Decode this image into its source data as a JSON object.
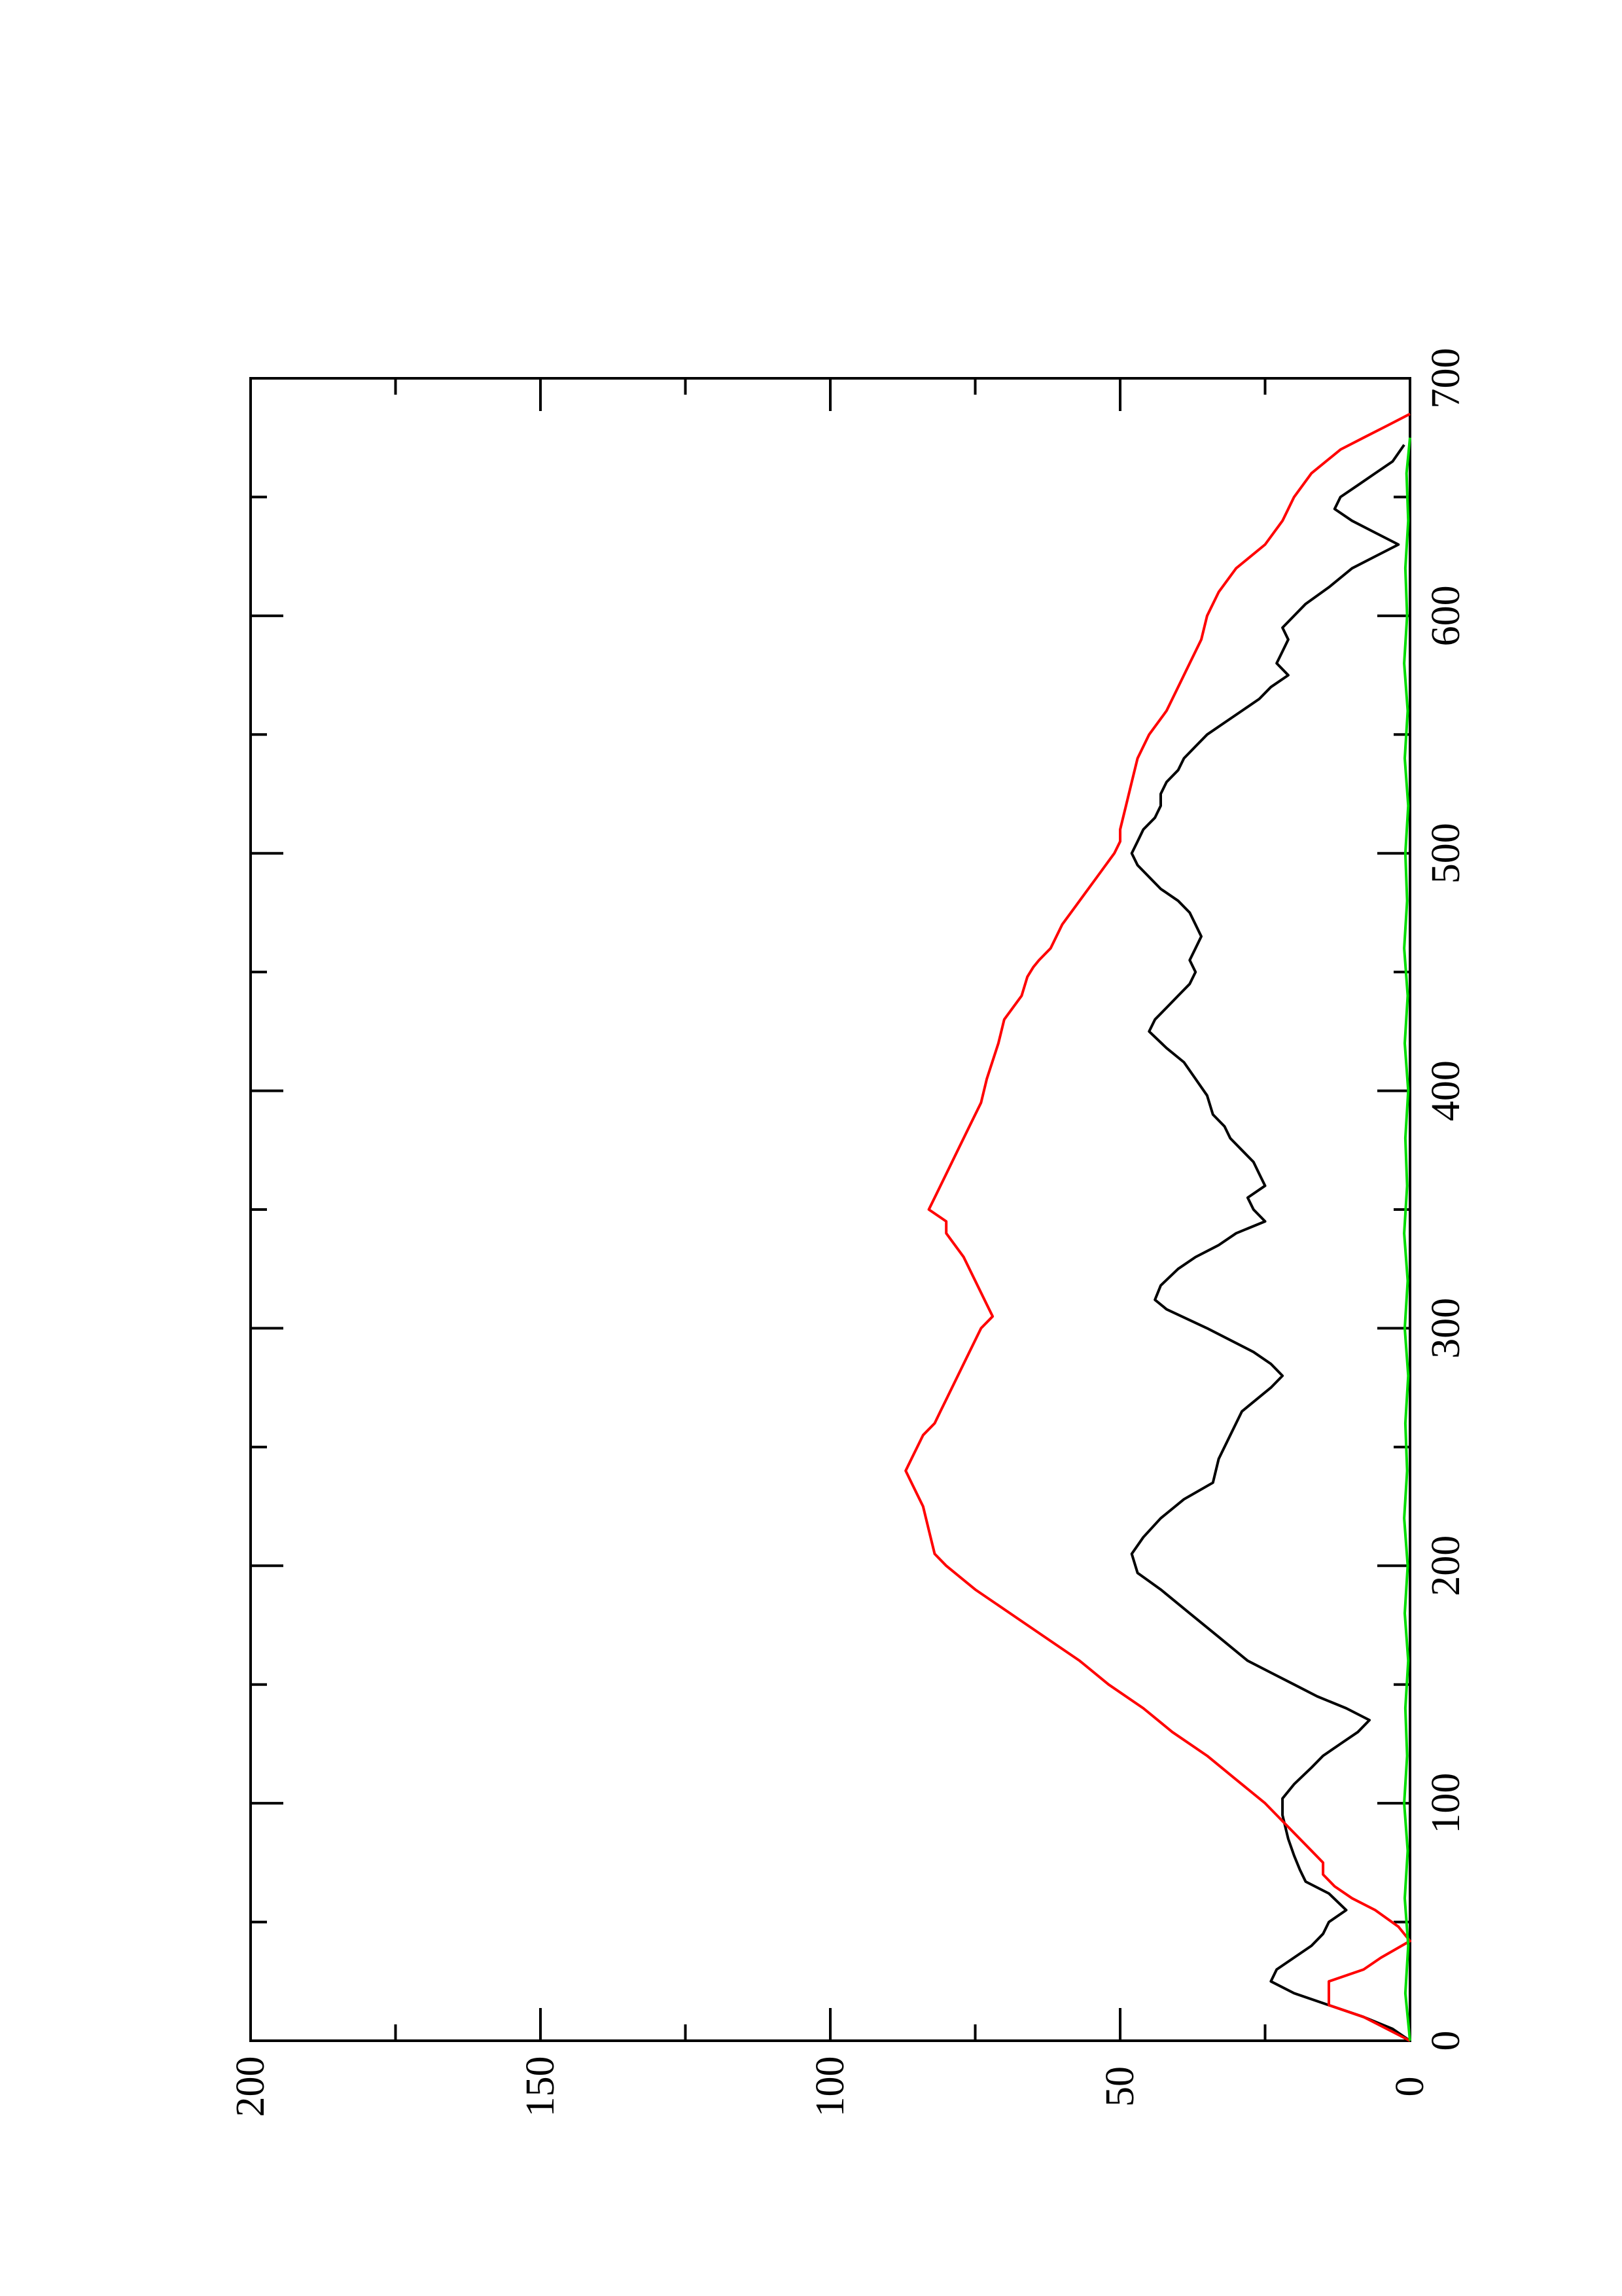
{
  "chart_data": {
    "type": "line",
    "orientation": "rotated-90-ccw",
    "title": "",
    "xlabel": "",
    "ylabel": "",
    "xlim": [
      0,
      700
    ],
    "ylim": [
      0,
      200
    ],
    "x_ticks": [
      0,
      100,
      200,
      300,
      400,
      500,
      600,
      700
    ],
    "x_tick_labels": [
      "0",
      "100",
      "200",
      "300",
      "400",
      "500",
      "600",
      "700"
    ],
    "x_minor_ticks": [
      50,
      150,
      250,
      350,
      450,
      550,
      650
    ],
    "y_ticks": [
      0,
      50,
      100,
      150,
      200
    ],
    "y_tick_labels": [
      "0",
      "50",
      "100",
      "150",
      "200"
    ],
    "y_minor_ticks": [
      25,
      75,
      125,
      175
    ],
    "grid": false,
    "legend": "none",
    "series": [
      {
        "color": "#000000",
        "points": [
          [
            0,
            0
          ],
          [
            5,
            3
          ],
          [
            10,
            8
          ],
          [
            15,
            14
          ],
          [
            20,
            20
          ],
          [
            25,
            24
          ],
          [
            30,
            23
          ],
          [
            35,
            20
          ],
          [
            40,
            17
          ],
          [
            45,
            15
          ],
          [
            50,
            14
          ],
          [
            55,
            11
          ],
          [
            62,
            14
          ],
          [
            67,
            18
          ],
          [
            72,
            19
          ],
          [
            78,
            20
          ],
          [
            85,
            21
          ],
          [
            95,
            22
          ],
          [
            102,
            22
          ],
          [
            108,
            20
          ],
          [
            115,
            17
          ],
          [
            120,
            15
          ],
          [
            125,
            12
          ],
          [
            130,
            9
          ],
          [
            135,
            7
          ],
          [
            140,
            11
          ],
          [
            145,
            16
          ],
          [
            150,
            20
          ],
          [
            155,
            24
          ],
          [
            160,
            28
          ],
          [
            170,
            33
          ],
          [
            180,
            38
          ],
          [
            190,
            43
          ],
          [
            197,
            47
          ],
          [
            205,
            48
          ],
          [
            212,
            46
          ],
          [
            220,
            43
          ],
          [
            228,
            39
          ],
          [
            235,
            34
          ],
          [
            245,
            33
          ],
          [
            255,
            31
          ],
          [
            265,
            29
          ],
          [
            275,
            24
          ],
          [
            280,
            22
          ],
          [
            285,
            24
          ],
          [
            290,
            27
          ],
          [
            300,
            35
          ],
          [
            308,
            42
          ],
          [
            312,
            44
          ],
          [
            318,
            43
          ],
          [
            325,
            40
          ],
          [
            330,
            37
          ],
          [
            335,
            33
          ],
          [
            340,
            30
          ],
          [
            345,
            25
          ],
          [
            350,
            27
          ],
          [
            355,
            28
          ],
          [
            360,
            25
          ],
          [
            365,
            26
          ],
          [
            370,
            27
          ],
          [
            375,
            29
          ],
          [
            380,
            31
          ],
          [
            385,
            32
          ],
          [
            390,
            34
          ],
          [
            398,
            35
          ],
          [
            405,
            37
          ],
          [
            412,
            39
          ],
          [
            418,
            42
          ],
          [
            425,
            45
          ],
          [
            430,
            44
          ],
          [
            435,
            42
          ],
          [
            440,
            40
          ],
          [
            445,
            38
          ],
          [
            450,
            37
          ],
          [
            455,
            38
          ],
          [
            460,
            37
          ],
          [
            465,
            36
          ],
          [
            470,
            37
          ],
          [
            475,
            38
          ],
          [
            480,
            40
          ],
          [
            485,
            43
          ],
          [
            490,
            45
          ],
          [
            495,
            47
          ],
          [
            500,
            48
          ],
          [
            505,
            47
          ],
          [
            510,
            46
          ],
          [
            515,
            44
          ],
          [
            520,
            43
          ],
          [
            525,
            43
          ],
          [
            530,
            42
          ],
          [
            535,
            40
          ],
          [
            540,
            39
          ],
          [
            545,
            37
          ],
          [
            550,
            35
          ],
          [
            555,
            32
          ],
          [
            560,
            29
          ],
          [
            565,
            26
          ],
          [
            570,
            24
          ],
          [
            575,
            21
          ],
          [
            580,
            23
          ],
          [
            585,
            22
          ],
          [
            590,
            21
          ],
          [
            595,
            22
          ],
          [
            600,
            20
          ],
          [
            605,
            18
          ],
          [
            612,
            14
          ],
          [
            620,
            10
          ],
          [
            625,
            6
          ],
          [
            630,
            2
          ],
          [
            635,
            6
          ],
          [
            640,
            10
          ],
          [
            645,
            13
          ],
          [
            650,
            12
          ],
          [
            655,
            9
          ],
          [
            660,
            6
          ],
          [
            665,
            3
          ],
          [
            672,
            1
          ]
        ]
      },
      {
        "color": "#ff0000",
        "points": [
          [
            0,
            0
          ],
          [
            5,
            4
          ],
          [
            10,
            8
          ],
          [
            15,
            14
          ],
          [
            25,
            14
          ],
          [
            30,
            8
          ],
          [
            35,
            5
          ],
          [
            42,
            0
          ],
          [
            48,
            2
          ],
          [
            55,
            6
          ],
          [
            60,
            10
          ],
          [
            65,
            13
          ],
          [
            70,
            15
          ],
          [
            75,
            15
          ],
          [
            80,
            17
          ],
          [
            90,
            21
          ],
          [
            100,
            25
          ],
          [
            110,
            30
          ],
          [
            120,
            35
          ],
          [
            130,
            41
          ],
          [
            140,
            46
          ],
          [
            150,
            52
          ],
          [
            160,
            57
          ],
          [
            170,
            63
          ],
          [
            180,
            69
          ],
          [
            190,
            75
          ],
          [
            200,
            80
          ],
          [
            205,
            82
          ],
          [
            215,
            83
          ],
          [
            225,
            84
          ],
          [
            235,
            86
          ],
          [
            240,
            87
          ],
          [
            245,
            86
          ],
          [
            250,
            85
          ],
          [
            255,
            84
          ],
          [
            260,
            82
          ],
          [
            265,
            81
          ],
          [
            270,
            80
          ],
          [
            280,
            78
          ],
          [
            290,
            76
          ],
          [
            300,
            74
          ],
          [
            305,
            72
          ],
          [
            310,
            73
          ],
          [
            320,
            75
          ],
          [
            330,
            77
          ],
          [
            340,
            80
          ],
          [
            345,
            80
          ],
          [
            350,
            83
          ],
          [
            355,
            82
          ],
          [
            365,
            80
          ],
          [
            375,
            78
          ],
          [
            385,
            76
          ],
          [
            395,
            74
          ],
          [
            405,
            73
          ],
          [
            420,
            71
          ],
          [
            430,
            70
          ],
          [
            440,
            67
          ],
          [
            448,
            66
          ],
          [
            452,
            65
          ],
          [
            455,
            64
          ],
          [
            460,
            62
          ],
          [
            470,
            60
          ],
          [
            480,
            57
          ],
          [
            490,
            54
          ],
          [
            500,
            51
          ],
          [
            505,
            50
          ],
          [
            510,
            50
          ],
          [
            520,
            49
          ],
          [
            530,
            48
          ],
          [
            540,
            47
          ],
          [
            550,
            45
          ],
          [
            560,
            42
          ],
          [
            570,
            40
          ],
          [
            580,
            38
          ],
          [
            590,
            36
          ],
          [
            600,
            35
          ],
          [
            610,
            33
          ],
          [
            620,
            30
          ],
          [
            630,
            25
          ],
          [
            640,
            22
          ],
          [
            650,
            20
          ],
          [
            660,
            17
          ],
          [
            670,
            12
          ],
          [
            675,
            8
          ],
          [
            680,
            4
          ],
          [
            685,
            0
          ]
        ]
      },
      {
        "color": "#00dd00",
        "points": [
          [
            0,
            0
          ],
          [
            20,
            0.8
          ],
          [
            40,
            0.3
          ],
          [
            60,
            0.9
          ],
          [
            80,
            0.4
          ],
          [
            100,
            1.0
          ],
          [
            120,
            0.5
          ],
          [
            140,
            0.8
          ],
          [
            160,
            0.3
          ],
          [
            180,
            0.9
          ],
          [
            200,
            0.4
          ],
          [
            220,
            1.0
          ],
          [
            240,
            0.5
          ],
          [
            260,
            0.8
          ],
          [
            280,
            0.3
          ],
          [
            300,
            0.9
          ],
          [
            320,
            0.4
          ],
          [
            340,
            1.0
          ],
          [
            360,
            0.5
          ],
          [
            380,
            0.8
          ],
          [
            400,
            0.3
          ],
          [
            420,
            0.9
          ],
          [
            440,
            0.4
          ],
          [
            460,
            1.0
          ],
          [
            480,
            0.5
          ],
          [
            500,
            0.8
          ],
          [
            520,
            0.3
          ],
          [
            540,
            0.9
          ],
          [
            560,
            0.4
          ],
          [
            580,
            1.0
          ],
          [
            600,
            0.5
          ],
          [
            620,
            0.8
          ],
          [
            640,
            0.3
          ],
          [
            660,
            0.6
          ],
          [
            675,
            0
          ]
        ]
      }
    ]
  }
}
